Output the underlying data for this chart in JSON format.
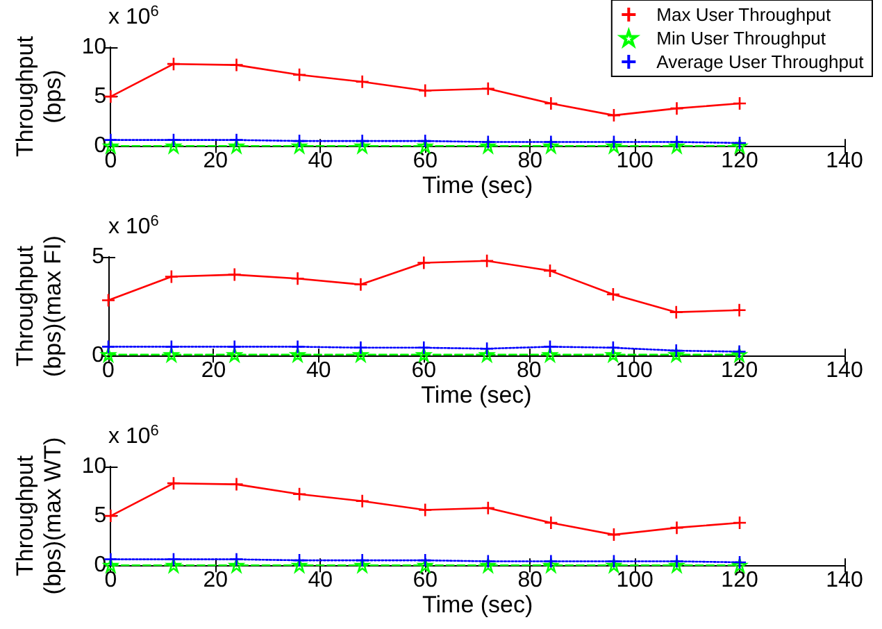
{
  "chart_data": [
    {
      "type": "line",
      "xlabel": "Time (sec)",
      "ylabel": "Throughput\n(bps)",
      "annotations": [
        "x 10$^{6}$"
      ],
      "x": [
        0,
        12,
        24,
        36,
        48,
        60,
        72,
        84,
        96,
        108,
        120
      ],
      "xlim": [
        0,
        140
      ],
      "xticks": [
        0,
        20,
        40,
        60,
        80,
        100,
        120,
        140
      ],
      "ylim": [
        0,
        10
      ],
      "yticks": [
        0,
        5,
        10
      ],
      "grid": false,
      "legend": "top right",
      "series": [
        {
          "name": "Max User Throughput",
          "color": "#ff0000",
          "marker": "cross",
          "line_style": "solid",
          "values": [
            5.0,
            8.3,
            8.2,
            7.2,
            6.5,
            5.6,
            5.8,
            4.3,
            3.1,
            3.8,
            4.3
          ]
        },
        {
          "name": "Min User Throughput",
          "color": "#00ff00",
          "marker": "star",
          "line_style": "dashed",
          "values": [
            0,
            0,
            0,
            0,
            0,
            0,
            0,
            0,
            0,
            0,
            0
          ]
        },
        {
          "name": "Average User Throughput",
          "color": "#0000ff",
          "marker": "cross",
          "line_style": "dotted",
          "values": [
            0.6,
            0.6,
            0.6,
            0.5,
            0.5,
            0.5,
            0.4,
            0.4,
            0.4,
            0.4,
            0.3
          ]
        }
      ]
    },
    {
      "type": "line",
      "xlabel": "Time (sec)",
      "ylabel": "Throughput\n(bps)(max FI)",
      "annotations": [
        "x 10$^{6}$"
      ],
      "x": [
        0,
        12,
        24,
        36,
        48,
        60,
        72,
        84,
        96,
        108,
        120
      ],
      "xlim": [
        0,
        140
      ],
      "xticks": [
        0,
        20,
        40,
        60,
        80,
        100,
        120,
        140
      ],
      "ylim": [
        0,
        5
      ],
      "yticks": [
        0,
        5
      ],
      "grid": false,
      "series": [
        {
          "color": "#ff0000",
          "marker": "cross",
          "line_style": "solid",
          "values": [
            2.8,
            4.0,
            4.1,
            3.9,
            3.6,
            4.7,
            4.8,
            4.3,
            3.1,
            2.2,
            2.3
          ]
        },
        {
          "color": "#00ff00",
          "marker": "star",
          "line_style": "dashed",
          "values": [
            0.05,
            0.05,
            0.05,
            0.05,
            0.05,
            0.05,
            0.05,
            0.05,
            0.05,
            0.05,
            0.05
          ]
        },
        {
          "color": "#0000ff",
          "marker": "cross",
          "line_style": "dotted",
          "values": [
            0.45,
            0.45,
            0.45,
            0.45,
            0.4,
            0.4,
            0.35,
            0.45,
            0.4,
            0.25,
            0.2
          ]
        }
      ]
    },
    {
      "type": "line",
      "xlabel": "Time (sec)",
      "ylabel": "Throughput\n(bps)(max WT)",
      "annotations": [
        "x 10$^{6}$"
      ],
      "x": [
        0,
        12,
        24,
        36,
        48,
        60,
        72,
        84,
        96,
        108,
        120
      ],
      "xlim": [
        0,
        140
      ],
      "xticks": [
        0,
        20,
        40,
        60,
        80,
        100,
        120,
        140
      ],
      "ylim": [
        0,
        10
      ],
      "yticks": [
        0,
        5,
        10
      ],
      "grid": false,
      "series": [
        {
          "color": "#ff0000",
          "marker": "cross",
          "line_style": "solid",
          "values": [
            5.0,
            8.3,
            8.2,
            7.2,
            6.5,
            5.6,
            5.8,
            4.3,
            3.1,
            3.8,
            4.3
          ]
        },
        {
          "color": "#00ff00",
          "marker": "star",
          "line_style": "dashed",
          "values": [
            0,
            0,
            0,
            0,
            0,
            0,
            0,
            0,
            0,
            0,
            0
          ]
        },
        {
          "color": "#0000ff",
          "marker": "cross",
          "line_style": "dotted",
          "values": [
            0.6,
            0.6,
            0.6,
            0.5,
            0.5,
            0.5,
            0.4,
            0.4,
            0.4,
            0.4,
            0.3
          ]
        }
      ]
    }
  ]
}
